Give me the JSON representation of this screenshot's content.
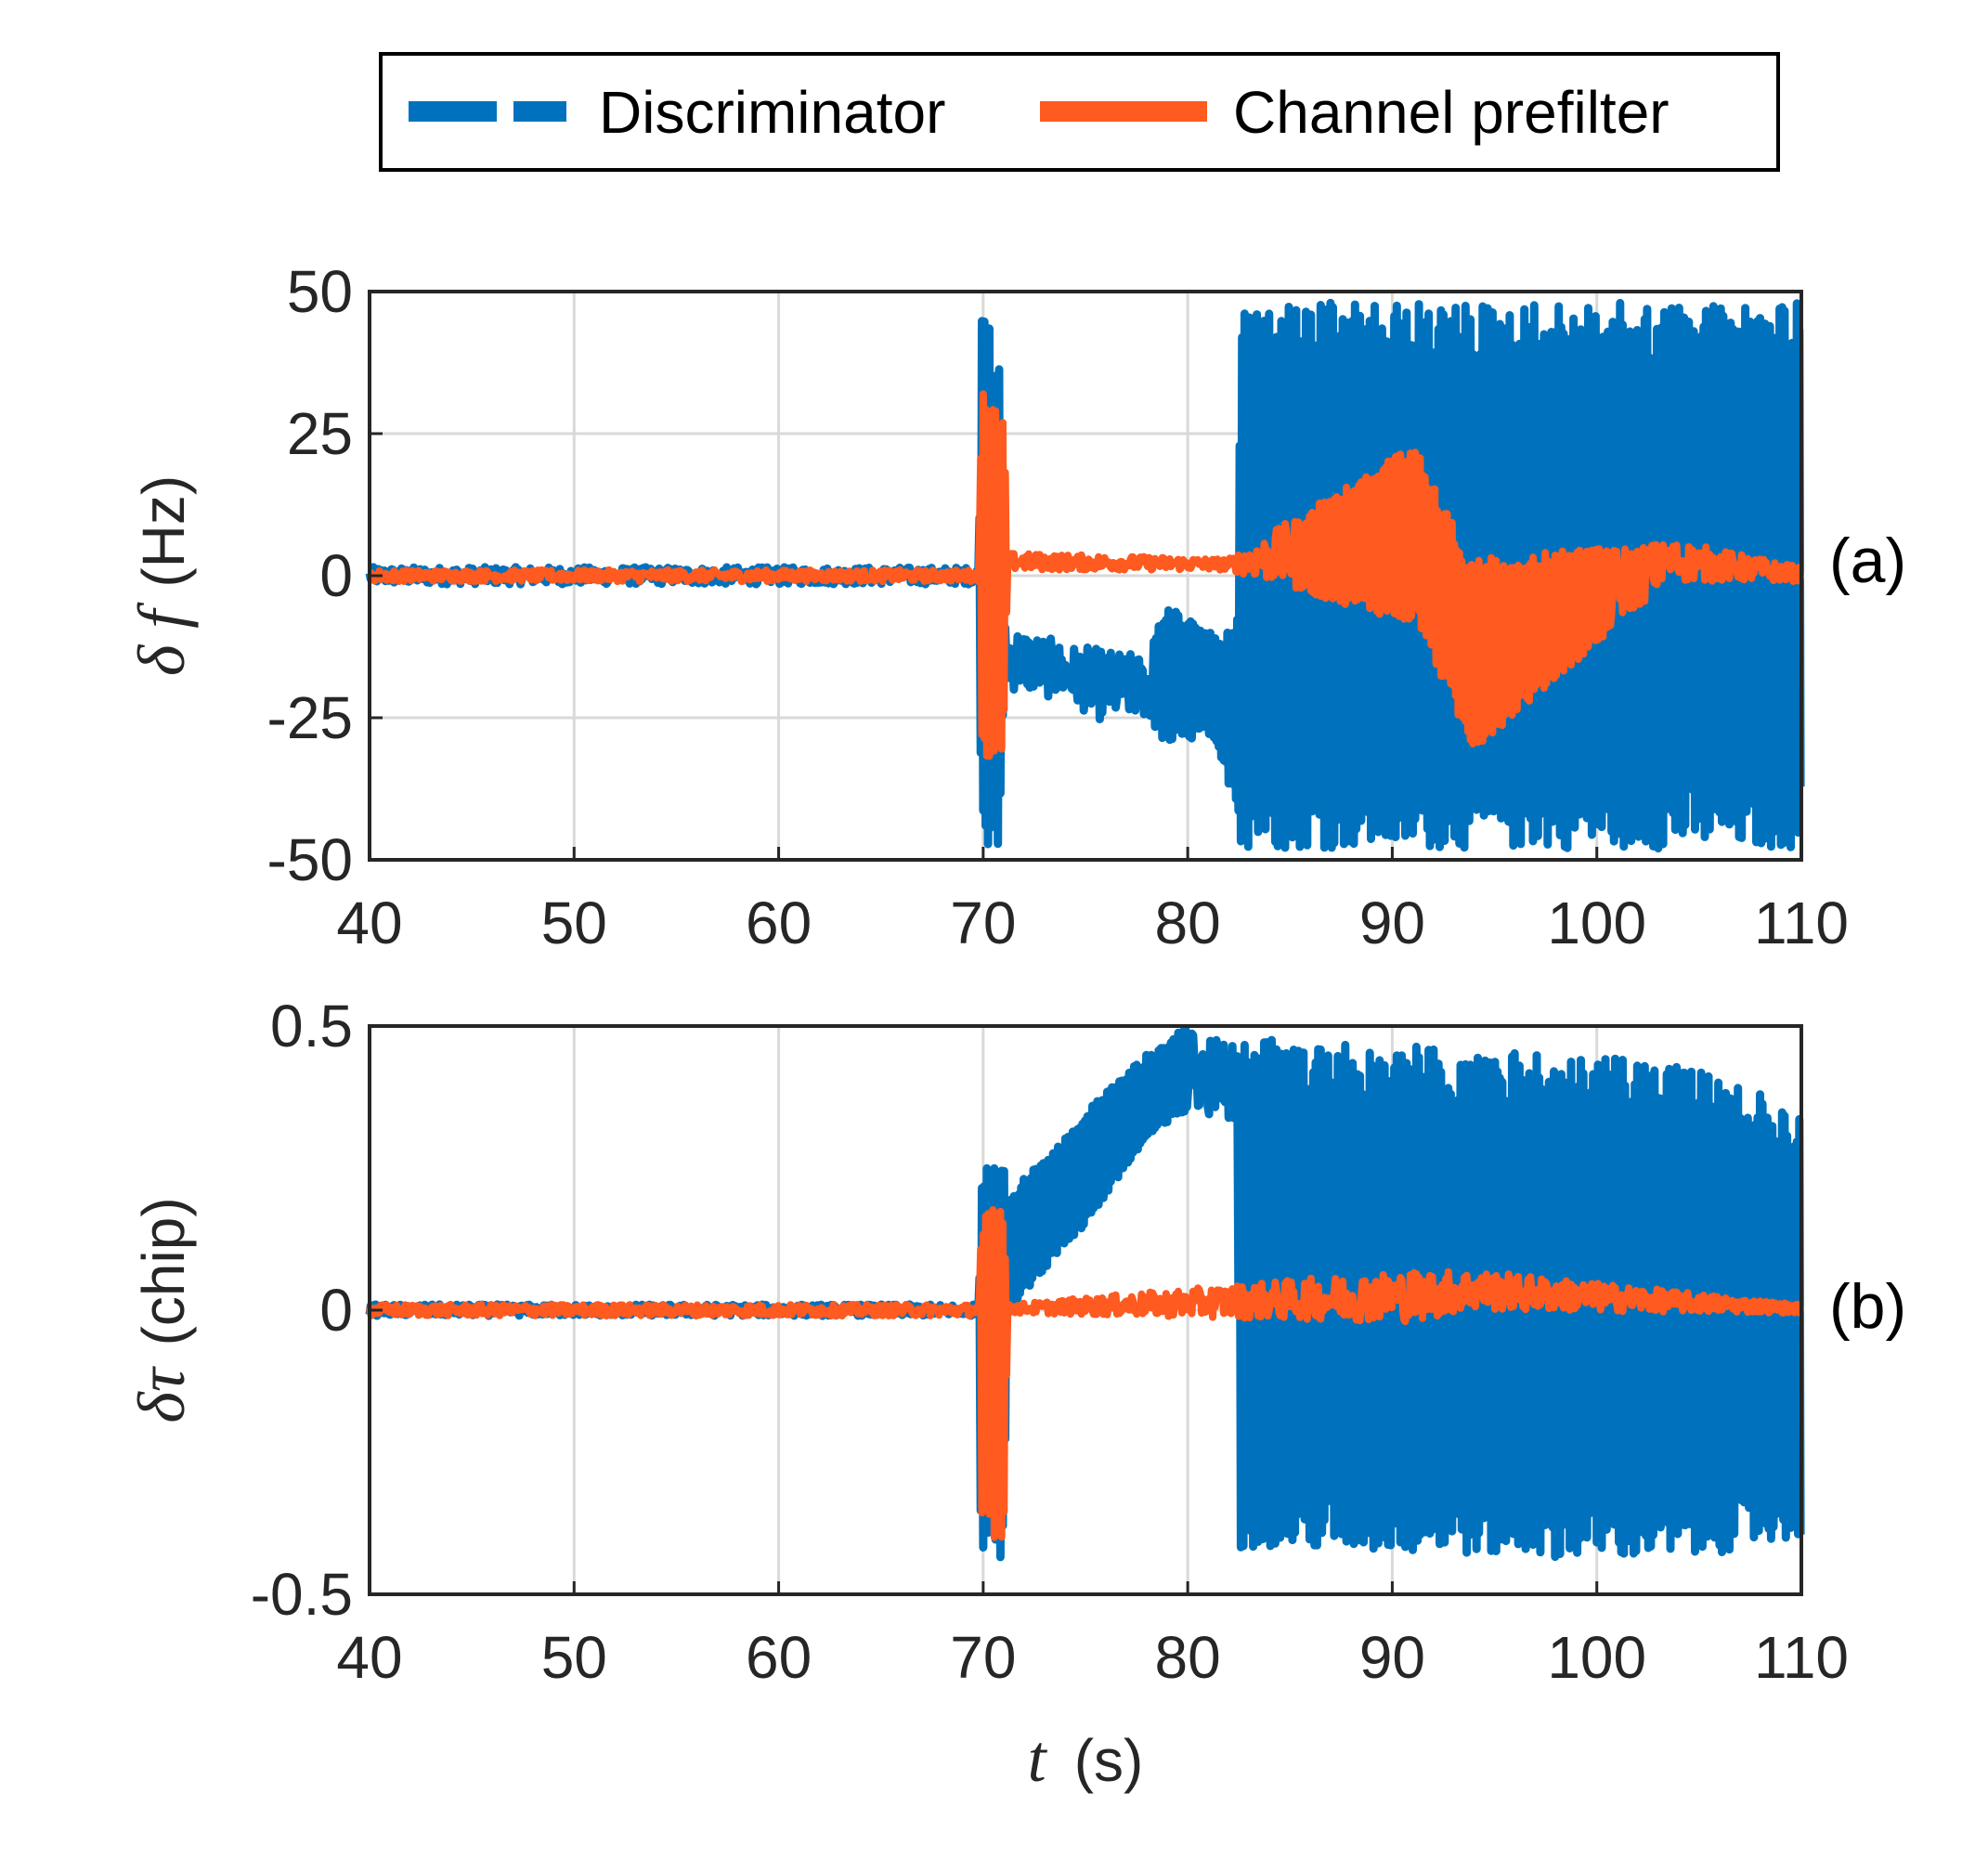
{
  "chart_data": {
    "type": "line",
    "legend": {
      "location": "top",
      "entries": [
        {
          "name": "Discriminator",
          "style": "dashed",
          "color": "#0072BD"
        },
        {
          "name": "Channel prefilter",
          "style": "solid",
          "color": "#FF5A1F"
        }
      ]
    },
    "shared_x": {
      "label_symbol": "t",
      "label_unit": "(s)",
      "lim": [
        40,
        110
      ],
      "ticks": [
        40,
        50,
        60,
        70,
        80,
        90,
        100,
        110
      ]
    },
    "panels": [
      {
        "id": "a",
        "panel_label": "(a)",
        "ylabel_symbol": "δ f",
        "ylabel_unit": "(Hz)",
        "ylim": [
          -50,
          50
        ],
        "yticks": [
          -50,
          -25,
          0,
          25,
          50
        ],
        "ytick_labels": [
          "-50",
          "-25",
          "0",
          "25",
          "50"
        ],
        "series": [
          {
            "name": "Discriminator",
            "envelope": [
              {
                "t": 40,
                "lo": -1.5,
                "hi": 1.5
              },
              {
                "t": 69.8,
                "lo": -1.5,
                "hi": 1.5
              },
              {
                "t": 69.9,
                "lo": -48,
                "hi": 45
              },
              {
                "t": 70.8,
                "lo": -48,
                "hi": 45
              },
              {
                "t": 71,
                "lo": -20,
                "hi": -8
              },
              {
                "t": 74,
                "lo": -22,
                "hi": -12
              },
              {
                "t": 76,
                "lo": -26,
                "hi": -13
              },
              {
                "t": 78,
                "lo": -25,
                "hi": -14
              },
              {
                "t": 79,
                "lo": -30,
                "hi": -5
              },
              {
                "t": 81,
                "lo": -28,
                "hi": -10
              },
              {
                "t": 82.4,
                "lo": -40,
                "hi": -10
              },
              {
                "t": 82.6,
                "lo": -48,
                "hi": 48
              },
              {
                "t": 110,
                "lo": -48,
                "hi": 48
              }
            ]
          },
          {
            "name": "Channel prefilter",
            "envelope": [
              {
                "t": 40,
                "lo": -1,
                "hi": 1
              },
              {
                "t": 69.8,
                "lo": -1,
                "hi": 1
              },
              {
                "t": 69.9,
                "lo": -32,
                "hi": 32
              },
              {
                "t": 71,
                "lo": -32,
                "hi": 32
              },
              {
                "t": 71.2,
                "lo": 1,
                "hi": 4
              },
              {
                "t": 82,
                "lo": 1,
                "hi": 3
              },
              {
                "t": 90.5,
                "lo": -8,
                "hi": 22
              },
              {
                "t": 91.2,
                "lo": -8,
                "hi": 22
              },
              {
                "t": 93.8,
                "lo": -30,
                "hi": 3
              },
              {
                "t": 94.2,
                "lo": -30,
                "hi": 3
              },
              {
                "t": 103.5,
                "lo": -1,
                "hi": 6
              },
              {
                "t": 104.2,
                "lo": -1,
                "hi": 6
              },
              {
                "t": 110,
                "lo": -1,
                "hi": 1.5
              }
            ]
          }
        ]
      },
      {
        "id": "b",
        "panel_label": "(b)",
        "ylabel_symbol": "δτ",
        "ylabel_unit": "(chip)",
        "ylim": [
          -0.5,
          0.5
        ],
        "yticks": [
          -0.5,
          0,
          0.5
        ],
        "ytick_labels": [
          "-0.5",
          "0",
          "0.5"
        ],
        "series": [
          {
            "name": "Discriminator",
            "envelope": [
              {
                "t": 40,
                "lo": -0.01,
                "hi": 0.01
              },
              {
                "t": 69.8,
                "lo": -0.01,
                "hi": 0.01
              },
              {
                "t": 69.9,
                "lo": -0.44,
                "hi": 0.25
              },
              {
                "t": 71,
                "lo": -0.44,
                "hi": 0.25
              },
              {
                "t": 71.2,
                "lo": 0.0,
                "hi": 0.2
              },
              {
                "t": 75,
                "lo": 0.15,
                "hi": 0.35
              },
              {
                "t": 78,
                "lo": 0.3,
                "hi": 0.45
              },
              {
                "t": 80,
                "lo": 0.35,
                "hi": 0.5
              },
              {
                "t": 82.4,
                "lo": 0.33,
                "hi": 0.47
              },
              {
                "t": 82.6,
                "lo": -0.42,
                "hi": 0.48
              },
              {
                "t": 104,
                "lo": -0.44,
                "hi": 0.44
              },
              {
                "t": 110,
                "lo": -0.4,
                "hi": 0.35
              }
            ]
          },
          {
            "name": "Channel prefilter",
            "envelope": [
              {
                "t": 40,
                "lo": -0.01,
                "hi": 0.01
              },
              {
                "t": 69.8,
                "lo": -0.01,
                "hi": 0.01
              },
              {
                "t": 69.9,
                "lo": -0.4,
                "hi": 0.2
              },
              {
                "t": 71,
                "lo": -0.4,
                "hi": 0.2
              },
              {
                "t": 71.2,
                "lo": -0.005,
                "hi": 0.01
              },
              {
                "t": 90.5,
                "lo": -0.02,
                "hi": 0.07
              },
              {
                "t": 91.2,
                "lo": -0.02,
                "hi": 0.07
              },
              {
                "t": 93.6,
                "lo": 0.0,
                "hi": 0.07
              },
              {
                "t": 94.2,
                "lo": 0.0,
                "hi": 0.07
              },
              {
                "t": 110,
                "lo": -0.005,
                "hi": 0.01
              }
            ]
          }
        ]
      }
    ]
  }
}
